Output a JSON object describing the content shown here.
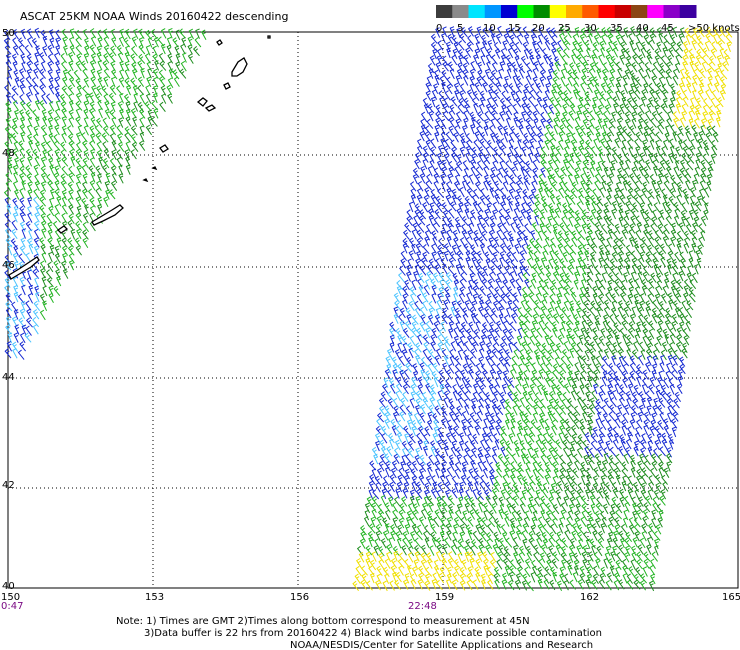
{
  "title": "ASCAT 25KM NOAA Winds 20160422 descending",
  "legend": {
    "labels": [
      "0",
      "5",
      "10",
      "15",
      "20",
      "25",
      "30",
      "35",
      "40",
      "45",
      ">50 knots"
    ],
    "colors": [
      "#3c3c3c",
      "#8a8a8a",
      "#00e5ff",
      "#0096ff",
      "#0000d2",
      "#00ff00",
      "#008c00",
      "#ffff00",
      "#ffaa00",
      "#ff5a00",
      "#ff0000",
      "#c80000",
      "#8b4513",
      "#ff00ff",
      "#8a00c8",
      "#3c00a0"
    ]
  },
  "axes": {
    "lon_labels": [
      "150",
      "153",
      "156",
      "159",
      "162",
      "165"
    ],
    "lat_labels": [
      "50",
      "48",
      "46",
      "44",
      "42",
      "40"
    ]
  },
  "times": {
    "left": "0:47",
    "right": "22:48"
  },
  "notes": [
    "Note: 1) Times are GMT 2)Times along bottom correspond to measurement at 45N",
    "3)Data buffer is 22 hrs from 20160422 4) Black wind barbs indicate possible contamination",
    "NOAA/NESDIS/Center for Satellite Applications and Research"
  ]
}
